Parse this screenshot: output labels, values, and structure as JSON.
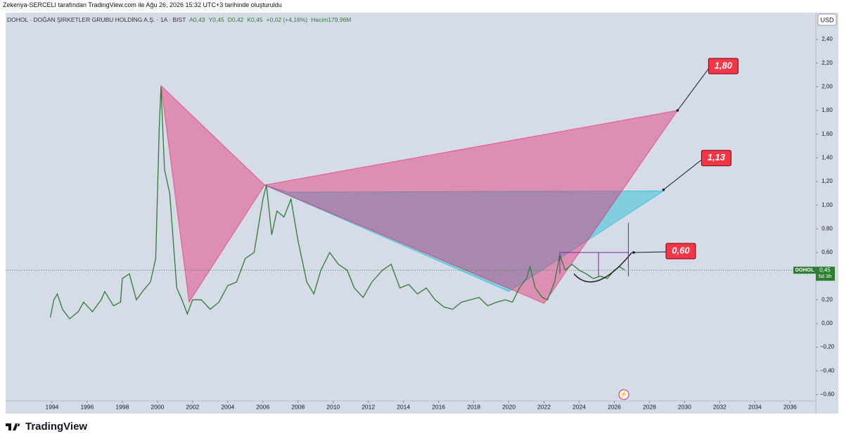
{
  "header": {
    "attribution": "Zekeriya-SERCELI tarafından TradingView.com ile Ağu 26, 2026 15:32 UTC+3 tarihinde oluşturuldu",
    "brand": "TradingView"
  },
  "chart_data": {
    "type": "line",
    "title": "DOHOL · DOĞAN ŞİRKETLER GRUBU HOLDİNG A.Ş. · 1A · BIST",
    "legend_values": [
      "A0,43",
      "Y0,45",
      "D0,42",
      "K0,45",
      "+0,02 (+4,16%)",
      "Hacim179,96M"
    ],
    "currency": "USD",
    "xlim": [
      1991.36,
      2037.47
    ],
    "xticks": [
      1994,
      1996,
      1998,
      2000,
      2002,
      2004,
      2006,
      2008,
      2010,
      2012,
      2014,
      2016,
      2018,
      2020,
      2022,
      2024,
      2026,
      2028,
      2030,
      2032,
      2034,
      2036
    ],
    "ylim": [
      -0.654,
      2.626
    ],
    "yticks": [
      {
        "value": -0.6,
        "label": "−0,60"
      },
      {
        "value": -0.4,
        "label": "−0,40"
      },
      {
        "value": -0.2,
        "label": "−0,20"
      },
      {
        "value": 0,
        "label": "0,00"
      },
      {
        "value": 0.2,
        "label": "0,20"
      },
      {
        "value": 0.4,
        "label": "0,40"
      },
      {
        "value": 0.6,
        "label": "0,60"
      },
      {
        "value": 0.8,
        "label": "0,80"
      },
      {
        "value": 1,
        "label": "1,00"
      },
      {
        "value": 1.2,
        "label": "1,20"
      },
      {
        "value": 1.4,
        "label": "1,40"
      },
      {
        "value": 1.6,
        "label": "1,60"
      },
      {
        "value": 1.8,
        "label": "1,80"
      },
      {
        "value": 2,
        "label": "2,00"
      },
      {
        "value": 2.2,
        "label": "2,20"
      },
      {
        "value": 2.4,
        "label": "2,40"
      }
    ],
    "x": [
      1993.9,
      1994.1,
      1994.3,
      1994.6,
      1995.0,
      1995.5,
      1995.8,
      1996.3,
      1996.8,
      1997.0,
      1997.5,
      1997.9,
      1998.0,
      1998.4,
      1998.8,
      1999.2,
      1999.6,
      1999.9,
      2000.1,
      2000.2,
      2000.4,
      2000.7,
      2000.9,
      2001.1,
      2001.4,
      2001.7,
      2002.0,
      2002.5,
      2003.0,
      2003.5,
      2004.0,
      2004.5,
      2005.0,
      2005.5,
      2006.0,
      2006.2,
      2006.5,
      2006.8,
      2007.2,
      2007.6,
      2008.0,
      2008.5,
      2008.9,
      2009.3,
      2009.8,
      2010.3,
      2010.8,
      2011.2,
      2011.7,
      2012.2,
      2012.8,
      2013.3,
      2013.8,
      2014.3,
      2014.8,
      2015.3,
      2015.8,
      2016.3,
      2016.8,
      2017.3,
      2017.8,
      2018.3,
      2018.8,
      2019.3,
      2019.8,
      2020.2,
      2020.6,
      2021.0,
      2021.2,
      2021.5,
      2021.9,
      2022.2,
      2022.6,
      2022.9,
      2023.2,
      2023.6,
      2024.0,
      2024.4,
      2024.8,
      2025.2,
      2025.6,
      2026.0,
      2026.3,
      2026.6
    ],
    "series": [
      {
        "name": "DOHOL",
        "color": "#2e7d32",
        "values": [
          0.05,
          0.2,
          0.25,
          0.12,
          0.04,
          0.1,
          0.18,
          0.1,
          0.2,
          0.27,
          0.15,
          0.18,
          0.38,
          0.42,
          0.2,
          0.28,
          0.35,
          0.55,
          1.65,
          2.0,
          1.3,
          1.1,
          0.7,
          0.3,
          0.2,
          0.08,
          0.2,
          0.2,
          0.12,
          0.18,
          0.32,
          0.35,
          0.55,
          0.6,
          1.05,
          1.17,
          0.75,
          0.95,
          0.9,
          1.05,
          0.7,
          0.35,
          0.25,
          0.45,
          0.6,
          0.5,
          0.45,
          0.3,
          0.22,
          0.35,
          0.45,
          0.5,
          0.3,
          0.33,
          0.25,
          0.3,
          0.2,
          0.14,
          0.12,
          0.18,
          0.2,
          0.22,
          0.15,
          0.18,
          0.2,
          0.18,
          0.3,
          0.38,
          0.48,
          0.3,
          0.22,
          0.2,
          0.35,
          0.58,
          0.45,
          0.5,
          0.45,
          0.42,
          0.38,
          0.4,
          0.38,
          0.45,
          0.48,
          0.45
        ]
      }
    ],
    "last_price": {
      "value": 0.45,
      "label": "0,45"
    },
    "countdown": "5d 3h",
    "patterns": [
      {
        "color": "#e91e63",
        "x": [
          2000.2,
          2001.8,
          2006.1
        ],
        "y": [
          2.01,
          0.18,
          1.17
        ]
      },
      {
        "color": "#00bcd4",
        "x": [
          2006.1,
          2020.0,
          2028.8,
          2007.4
        ],
        "y": [
          1.17,
          0.27,
          1.12,
          1.11
        ]
      },
      {
        "color": "#e91e63",
        "x": [
          2006.1,
          2022.0,
          2029.6
        ],
        "y": [
          1.17,
          0.17,
          1.8
        ]
      }
    ],
    "annotations": [
      {
        "x": 2029.6,
        "value": 1.8,
        "label": "1,80"
      },
      {
        "x": 2028.8,
        "value": 1.13,
        "label": "1,13"
      },
      {
        "x": 2027.1,
        "value": 0.6,
        "label": "0,60"
      }
    ]
  }
}
